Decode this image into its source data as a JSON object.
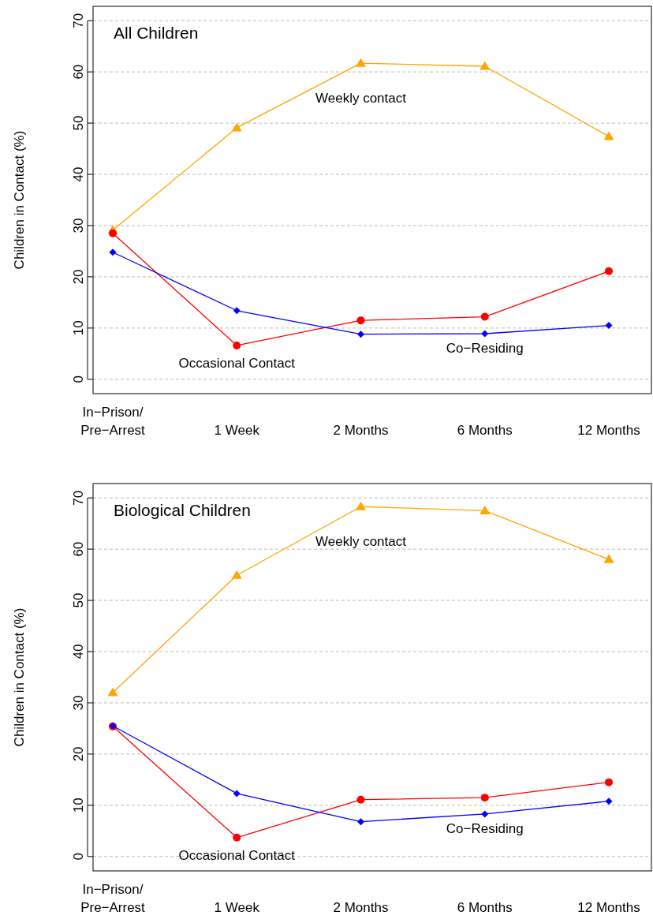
{
  "chart_data": [
    {
      "type": "line",
      "title": "All Children",
      "ylabel": "Children in Contact (%)",
      "categories": [
        "In−Prison/\nPre−Arrest",
        "1 Week",
        "2 Months",
        "6 Months",
        "12 Months"
      ],
      "ylim": [
        -2.8,
        72.8
      ],
      "yticks": [
        0,
        10,
        20,
        30,
        40,
        50,
        60,
        70
      ],
      "grid": "y",
      "line_style": "solid",
      "series": [
        {
          "name": "Weekly contact",
          "color": "#ffa500",
          "marker": "triangle",
          "values": [
            29.1,
            49.1,
            61.7,
            61.1,
            47.4
          ]
        },
        {
          "name": "Occasional Contact",
          "color": "#ff0000",
          "marker": "circle",
          "values": [
            28.5,
            6.6,
            11.5,
            12.2,
            21.1
          ]
        },
        {
          "name": "Co−Residing",
          "color": "#0000ff",
          "marker": "diamond",
          "values": [
            24.8,
            13.4,
            8.8,
            8.9,
            10.5
          ]
        }
      ]
    },
    {
      "type": "line",
      "title": "Biological Children",
      "ylabel": "Children in Contact (%)",
      "categories": [
        "In−Prison/\nPre−Arrest",
        "1 Week",
        "2 Months",
        "6 Months",
        "12 Months"
      ],
      "ylim": [
        -2.8,
        72.8
      ],
      "yticks": [
        0,
        10,
        20,
        30,
        40,
        50,
        60,
        70
      ],
      "grid": "y",
      "line_style": "solid",
      "series": [
        {
          "name": "Weekly contact",
          "color": "#ffa500",
          "marker": "triangle",
          "values": [
            32.0,
            54.9,
            68.3,
            67.5,
            58.0
          ]
        },
        {
          "name": "Occasional Contact",
          "color": "#ff0000",
          "marker": "circle",
          "values": [
            25.4,
            3.7,
            11.1,
            11.5,
            14.5
          ]
        },
        {
          "name": "Co−Residing",
          "color": "#0000ff",
          "marker": "diamond",
          "values": [
            25.5,
            12.3,
            6.8,
            8.3,
            10.8
          ]
        }
      ]
    }
  ]
}
